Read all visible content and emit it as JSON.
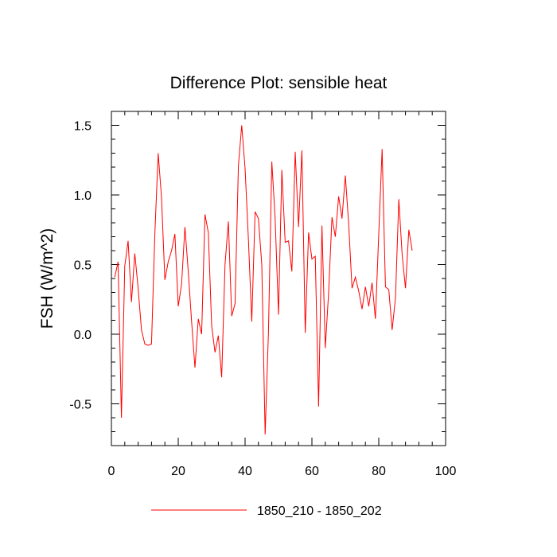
{
  "chart_data": {
    "type": "line",
    "title": "Difference Plot: sensible heat",
    "xlabel": "",
    "ylabel": "FSH  (W/m^2)",
    "xlim": [
      0,
      100
    ],
    "ylim": [
      -0.8,
      1.6
    ],
    "xticks": [
      0,
      20,
      40,
      60,
      80,
      100
    ],
    "xtick_labels": [
      "0",
      "20",
      "40",
      "60",
      "80",
      "100"
    ],
    "yticks": [
      -0.5,
      0.0,
      0.5,
      1.0,
      1.5
    ],
    "ytick_labels": [
      "-0.5",
      "0.0",
      "0.5",
      "1.0",
      "1.5"
    ],
    "legend_position": "bottom",
    "series": [
      {
        "name": "1850_210 - 1850_202",
        "color": "#ff0000",
        "x": [
          1,
          2,
          3,
          4,
          5,
          6,
          7,
          8,
          9,
          10,
          11,
          12,
          13,
          14,
          15,
          16,
          17,
          18,
          19,
          20,
          21,
          22,
          23,
          24,
          25,
          26,
          27,
          28,
          29,
          30,
          31,
          32,
          33,
          34,
          35,
          36,
          37,
          38,
          39,
          40,
          41,
          42,
          43,
          44,
          45,
          46,
          47,
          48,
          49,
          50,
          51,
          52,
          53,
          54,
          55,
          56,
          57,
          58,
          59,
          60,
          61,
          62,
          63,
          64,
          65,
          66,
          67,
          68,
          69,
          70,
          71,
          72,
          73,
          74,
          75,
          76,
          77,
          78,
          79,
          80,
          81,
          82,
          83,
          84,
          85,
          86,
          87,
          88,
          89,
          90
        ],
        "values": [
          0.41,
          0.52,
          -0.6,
          0.49,
          0.67,
          0.23,
          0.58,
          0.33,
          0.03,
          -0.07,
          -0.08,
          -0.07,
          0.72,
          1.3,
          0.98,
          0.39,
          0.52,
          0.6,
          0.72,
          0.2,
          0.36,
          0.77,
          0.45,
          0.09,
          -0.24,
          0.11,
          0.0,
          0.86,
          0.73,
          0.06,
          -0.13,
          -0.01,
          -0.31,
          0.5,
          0.81,
          0.13,
          0.22,
          1.21,
          1.5,
          1.19,
          0.68,
          0.09,
          0.88,
          0.83,
          0.5,
          -0.72,
          0.02,
          1.24,
          0.83,
          0.14,
          1.18,
          0.66,
          0.67,
          0.45,
          1.31,
          0.77,
          1.32,
          0.01,
          0.73,
          0.54,
          0.56,
          -0.52,
          0.78,
          -0.1,
          0.3,
          0.84,
          0.7,
          0.99,
          0.83,
          1.14,
          0.79,
          0.33,
          0.41,
          0.31,
          0.18,
          0.34,
          0.2,
          0.37,
          0.11,
          0.72,
          1.33,
          0.34,
          0.32,
          0.03,
          0.26,
          0.97,
          0.57,
          0.33,
          0.75,
          0.6
        ]
      }
    ]
  }
}
